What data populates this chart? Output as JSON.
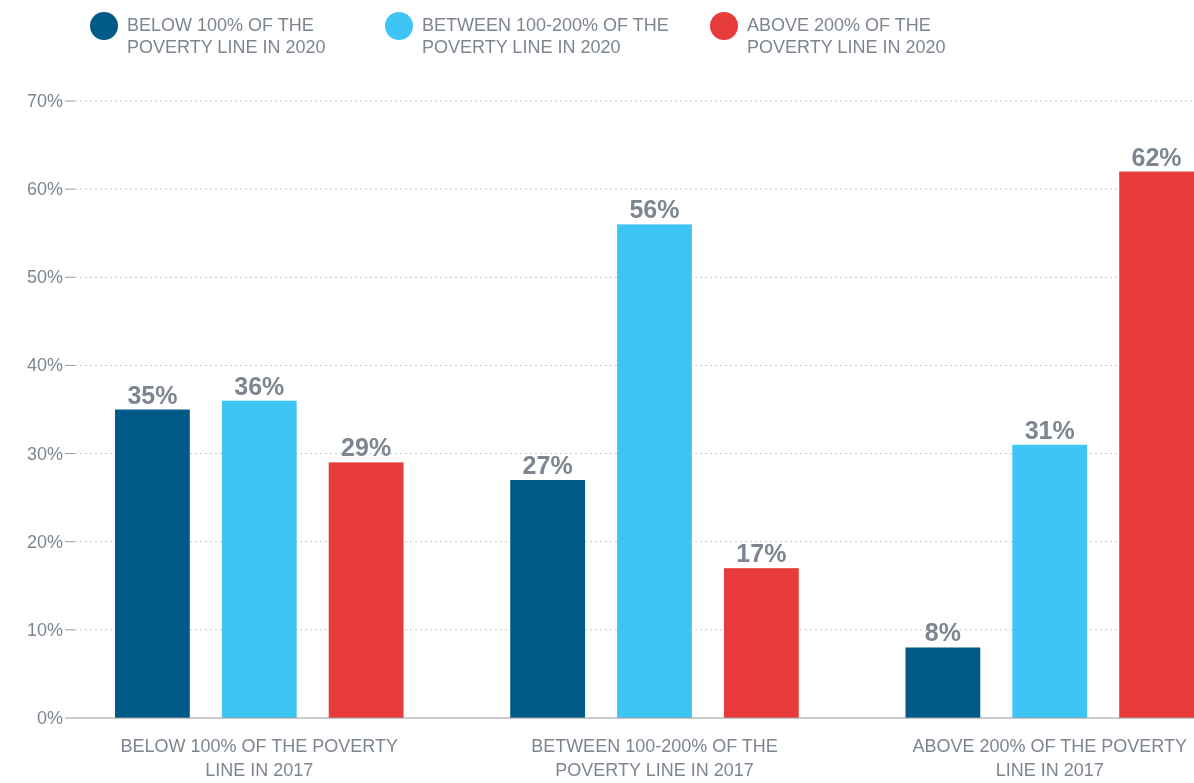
{
  "chart_data": {
    "type": "bar",
    "categories": [
      "BELOW 100% OF THE POVERTY LINE IN 2017",
      "BETWEEN 100-200% OF THE POVERTY LINE IN 2017",
      "ABOVE 200% OF THE POVERTY LINE IN 2017"
    ],
    "series": [
      {
        "name": "BELOW 100% OF THE POVERTY LINE IN 2020",
        "color": "#005a87",
        "values": [
          35,
          27,
          8
        ],
        "value_labels": [
          "35%",
          "27%",
          "8%"
        ]
      },
      {
        "name": "BETWEEN 100-200% OF THE POVERTY LINE IN 2020",
        "color": "#3ec5f5",
        "values": [
          36,
          56,
          31
        ],
        "value_labels": [
          "36%",
          "56%",
          "31%"
        ]
      },
      {
        "name": "ABOVE 200% OF THE POVERTY LINE IN 2020",
        "color": "#e83c3c",
        "values": [
          29,
          17,
          62
        ],
        "value_labels": [
          "29%",
          "17%",
          "62%"
        ]
      }
    ],
    "ylim": [
      0,
      70
    ],
    "yticks": [
      {
        "value": 0,
        "label": "0%"
      },
      {
        "value": 10,
        "label": "10%"
      },
      {
        "value": 20,
        "label": "20%"
      },
      {
        "value": 30,
        "label": "30%"
      },
      {
        "value": 40,
        "label": "40%"
      },
      {
        "value": 50,
        "label": "50%"
      },
      {
        "value": 60,
        "label": "60%"
      },
      {
        "value": 70,
        "label": "70%"
      }
    ],
    "grid": "y",
    "legend": "top"
  }
}
